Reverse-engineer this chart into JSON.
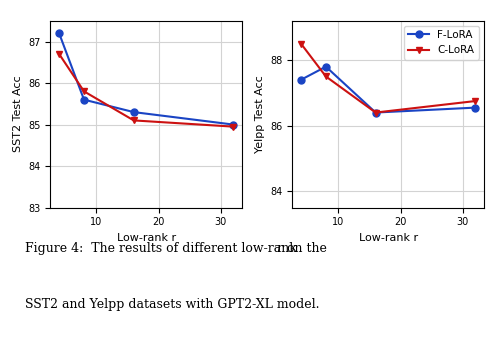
{
  "x": [
    4,
    8,
    16,
    32
  ],
  "sst2_flora": [
    87.2,
    85.6,
    85.3,
    85.0
  ],
  "sst2_clora": [
    86.7,
    85.8,
    85.1,
    84.95
  ],
  "yelpp_flora": [
    87.4,
    87.8,
    86.4,
    86.55
  ],
  "yelpp_clora": [
    88.5,
    87.5,
    86.4,
    86.75
  ],
  "sst2_ylim": [
    83,
    87.5
  ],
  "yelpp_ylim": [
    83.5,
    89.2
  ],
  "sst2_yticks": [
    83,
    84,
    85,
    86,
    87
  ],
  "yelpp_yticks": [
    84,
    86,
    88
  ],
  "xticks": [
    10,
    20,
    30
  ],
  "xlabel": "Low-rank r",
  "sst2_ylabel": "SST2 Test Acc",
  "yelpp_ylabel": "Yelpp Test Acc",
  "flora_color": "#1a44c4",
  "clora_color": "#cc1111",
  "flora_label": "F-LoRA",
  "clora_label": "C-LoRA",
  "bg_color": "#ffffff"
}
